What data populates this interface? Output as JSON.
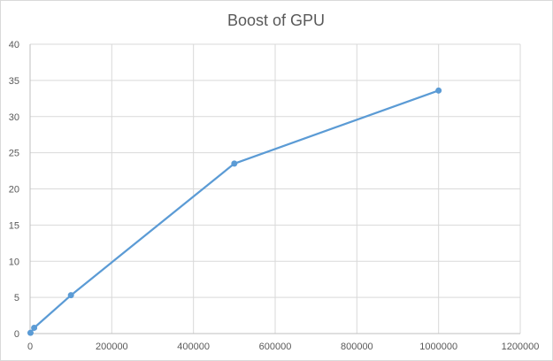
{
  "chart_data": {
    "type": "line",
    "title": "Boost of GPU",
    "xlabel": "",
    "ylabel": "",
    "xlim": [
      0,
      1200000
    ],
    "ylim": [
      0,
      40
    ],
    "x_ticks": [
      0,
      200000,
      400000,
      600000,
      800000,
      1000000,
      1200000
    ],
    "y_ticks": [
      0,
      5,
      10,
      15,
      20,
      25,
      30,
      35,
      40
    ],
    "grid": true,
    "legend": "none",
    "series": [
      {
        "color": "#5b9bd5",
        "x": [
          1000,
          10000,
          100000,
          500000,
          1000000
        ],
        "y": [
          0.1,
          0.8,
          5.3,
          23.5,
          33.6
        ]
      }
    ]
  }
}
